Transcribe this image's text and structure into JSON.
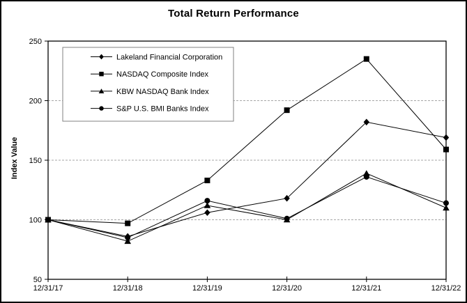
{
  "chart_data": {
    "type": "line",
    "title": "Total Return Performance",
    "xlabel": "",
    "ylabel": "Index Value",
    "categories": [
      "12/31/17",
      "12/31/18",
      "12/31/19",
      "12/31/20",
      "12/31/21",
      "12/31/22"
    ],
    "series": [
      {
        "name": "Lakeland Financial Corporation",
        "marker": "diamond",
        "color": "#000000",
        "values": [
          100,
          86,
          106,
          118,
          182,
          169
        ]
      },
      {
        "name": "NASDAQ Composite Index",
        "marker": "square",
        "color": "#000000",
        "values": [
          100,
          97,
          133,
          192,
          235,
          159
        ]
      },
      {
        "name": "KBW NASDAQ Bank Index",
        "marker": "triangle",
        "color": "#000000",
        "values": [
          100,
          82,
          112,
          100,
          139,
          110
        ]
      },
      {
        "name": "S&P U.S. BMI Banks Index",
        "marker": "circle",
        "color": "#000000",
        "values": [
          100,
          85,
          116,
          101,
          136,
          114
        ]
      }
    ],
    "ylim": [
      50,
      250
    ],
    "yticks": [
      50,
      100,
      150,
      200,
      250
    ],
    "gridlines_dashed_at": [
      100,
      150,
      200
    ],
    "grid": true,
    "legend_position": "top-left-inside",
    "line_color": "#000000",
    "grid_color": "#a6a6a6",
    "frame_color": "#000000",
    "legend_border_color": "#808080",
    "background_color": "#ffffff"
  }
}
